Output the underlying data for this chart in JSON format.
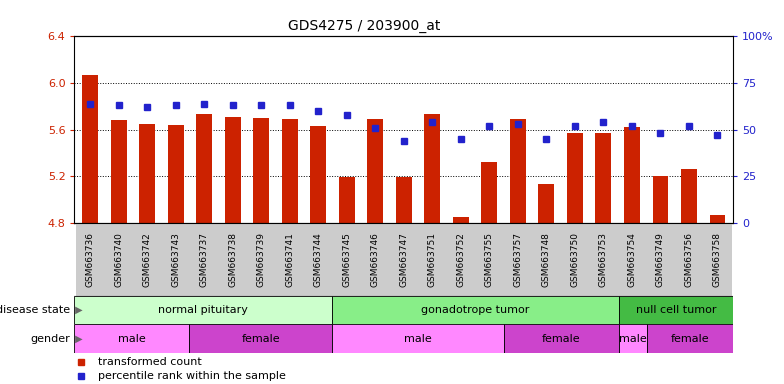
{
  "title": "GDS4275 / 203900_at",
  "samples": [
    "GSM663736",
    "GSM663740",
    "GSM663742",
    "GSM663743",
    "GSM663737",
    "GSM663738",
    "GSM663739",
    "GSM663741",
    "GSM663744",
    "GSM663745",
    "GSM663746",
    "GSM663747",
    "GSM663751",
    "GSM663752",
    "GSM663755",
    "GSM663757",
    "GSM663748",
    "GSM663750",
    "GSM663753",
    "GSM663754",
    "GSM663749",
    "GSM663756",
    "GSM663758"
  ],
  "transformed_count": [
    6.07,
    5.68,
    5.65,
    5.64,
    5.73,
    5.71,
    5.7,
    5.69,
    5.63,
    5.19,
    5.69,
    5.19,
    5.73,
    4.85,
    5.32,
    5.69,
    5.13,
    5.57,
    5.57,
    5.62,
    5.2,
    5.26,
    4.87
  ],
  "percentile_rank": [
    64,
    63,
    62,
    63,
    64,
    63,
    63,
    63,
    60,
    58,
    51,
    44,
    54,
    45,
    52,
    53,
    45,
    52,
    54,
    52,
    48,
    52,
    47
  ],
  "ylim_left": [
    4.8,
    6.4
  ],
  "ylim_right": [
    0,
    100
  ],
  "yticks_left": [
    4.8,
    5.2,
    5.6,
    6.0,
    6.4
  ],
  "yticks_right": [
    0,
    25,
    50,
    75,
    100
  ],
  "bar_color": "#CC2200",
  "marker_color": "#2222CC",
  "gridline_ticks": [
    5.2,
    5.6,
    6.0
  ],
  "disease_state_groups": [
    {
      "label": "normal pituitary",
      "start": 0,
      "end": 9,
      "color": "#CCFFCC"
    },
    {
      "label": "gonadotrope tumor",
      "start": 9,
      "end": 19,
      "color": "#88EE88"
    },
    {
      "label": "null cell tumor",
      "start": 19,
      "end": 23,
      "color": "#44BB44"
    }
  ],
  "gender_groups": [
    {
      "label": "male",
      "start": 0,
      "end": 4,
      "color": "#FF88FF"
    },
    {
      "label": "female",
      "start": 4,
      "end": 9,
      "color": "#CC44CC"
    },
    {
      "label": "male",
      "start": 9,
      "end": 15,
      "color": "#FF88FF"
    },
    {
      "label": "female",
      "start": 15,
      "end": 19,
      "color": "#CC44CC"
    },
    {
      "label": "male",
      "start": 19,
      "end": 20,
      "color": "#FF88FF"
    },
    {
      "label": "female",
      "start": 20,
      "end": 23,
      "color": "#CC44CC"
    }
  ],
  "legend_items": [
    {
      "label": "transformed count",
      "color": "#CC2200"
    },
    {
      "label": "percentile rank within the sample",
      "color": "#2222CC"
    }
  ]
}
